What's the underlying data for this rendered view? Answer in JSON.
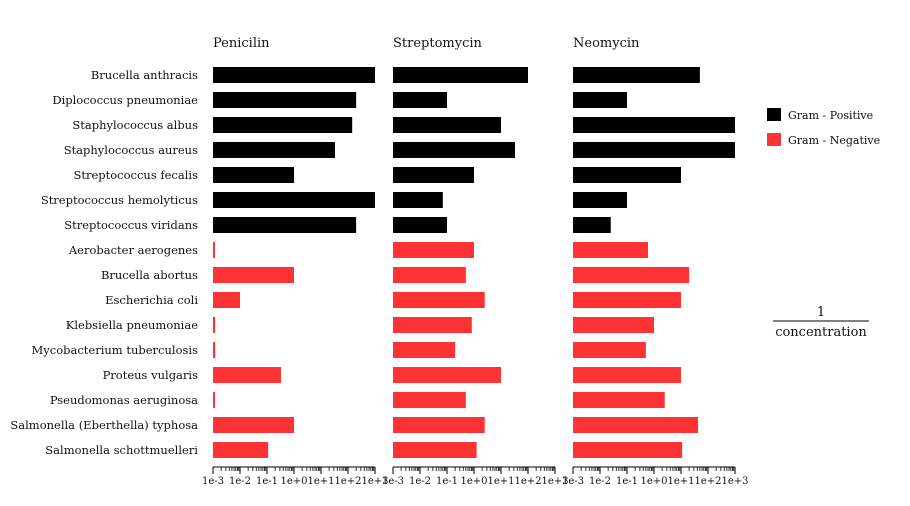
{
  "chart_data": {
    "type": "bar",
    "orientation": "horizontal",
    "x_scale": "log",
    "xlim": [
      0.001,
      1000
    ],
    "x_ticks": [
      "1e-3",
      "1e-2",
      "1e-1",
      "1e+0",
      "1e+1",
      "1e+2",
      "1e+3"
    ],
    "x_label_numerator": "1",
    "x_label_denominator": "concentration",
    "panels": [
      "Penicilin",
      "Streptomycin",
      "Neomycin"
    ],
    "legend": [
      {
        "name": "Gram - Positive",
        "color": "#000000"
      },
      {
        "name": "Gram - Negative",
        "color": "#ff3333"
      }
    ],
    "legend_position": "right",
    "grid": false,
    "bacteria": [
      {
        "name": "Brucella anthracis",
        "gram": "positive",
        "penicilin": 1000,
        "streptomycin": 100,
        "neomycin": 50
      },
      {
        "name": "Diplococcus pneumoniae",
        "gram": "positive",
        "penicilin": 200,
        "streptomycin": 0.1,
        "neomycin": 0.1
      },
      {
        "name": "Staphylococcus albus",
        "gram": "positive",
        "penicilin": 143,
        "streptomycin": 10,
        "neomycin": 1000
      },
      {
        "name": "Staphylococcus aureus",
        "gram": "positive",
        "penicilin": 33,
        "streptomycin": 33,
        "neomycin": 1000
      },
      {
        "name": "Streptococcus fecalis",
        "gram": "positive",
        "penicilin": 1,
        "streptomycin": 1,
        "neomycin": 10
      },
      {
        "name": "Streptococcus hemolyticus",
        "gram": "positive",
        "penicilin": 1000,
        "streptomycin": 0.07,
        "neomycin": 0.1
      },
      {
        "name": "Streptococcus viridans",
        "gram": "positive",
        "penicilin": 200,
        "streptomycin": 0.1,
        "neomycin": 0.025
      },
      {
        "name": "Aerobacter aerogenes",
        "gram": "negative",
        "penicilin": 0.0011,
        "streptomycin": 1,
        "neomycin": 0.6
      },
      {
        "name": "Brucella abortus",
        "gram": "negative",
        "penicilin": 1,
        "streptomycin": 0.5,
        "neomycin": 20
      },
      {
        "name": "Escherichia coli",
        "gram": "negative",
        "penicilin": 0.01,
        "streptomycin": 2.5,
        "neomycin": 10
      },
      {
        "name": "Klebsiella pneumoniae",
        "gram": "negative",
        "penicilin": 0.0012,
        "streptomycin": 0.83,
        "neomycin": 1
      },
      {
        "name": "Mycobacterium tuberculosis",
        "gram": "negative",
        "penicilin": 0.0012,
        "streptomycin": 0.2,
        "neomycin": 0.5
      },
      {
        "name": "Proteus vulgaris",
        "gram": "negative",
        "penicilin": 0.33,
        "streptomycin": 10,
        "neomycin": 10
      },
      {
        "name": "Pseudomonas aeruginosa",
        "gram": "negative",
        "penicilin": 0.0011,
        "streptomycin": 0.5,
        "neomycin": 2.5
      },
      {
        "name": "Salmonella (Eberthella) typhosa",
        "gram": "negative",
        "penicilin": 1,
        "streptomycin": 2.5,
        "neomycin": 43
      },
      {
        "name": "Salmonella schottmuelleri",
        "gram": "negative",
        "penicilin": 0.11,
        "streptomycin": 1.25,
        "neomycin": 11
      }
    ]
  }
}
